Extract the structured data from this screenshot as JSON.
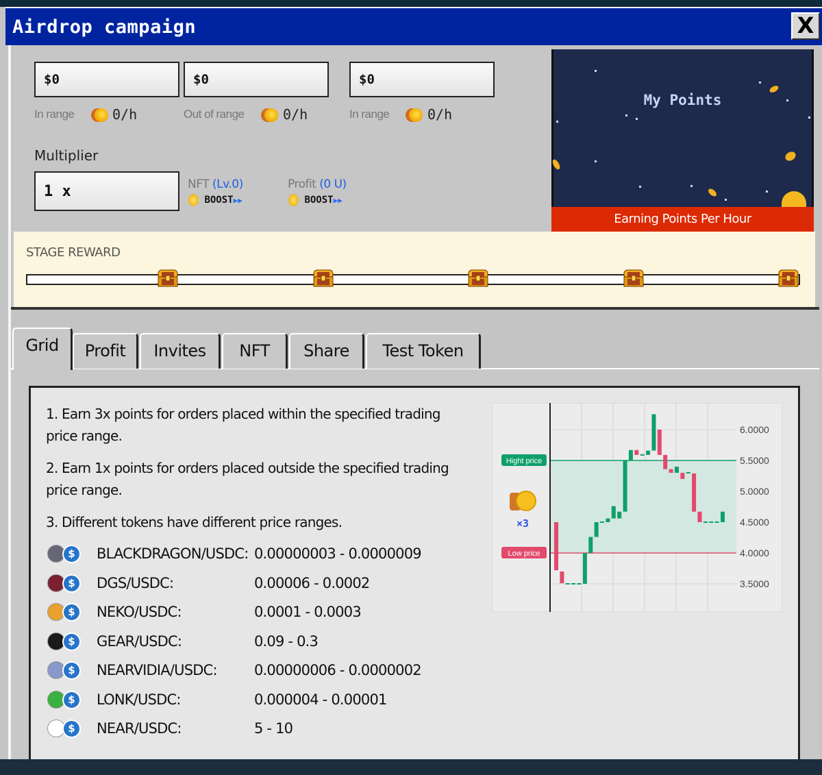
{
  "window": {
    "title": "Airdrop campaign",
    "close_label": "X"
  },
  "boost_inputs": [
    {
      "value": "$0",
      "label": "In range",
      "rate": "0/h"
    },
    {
      "value": "$0",
      "label": "Out of range",
      "rate": "0/h"
    },
    {
      "value": "$0",
      "label": "In range",
      "rate": "0/h"
    }
  ],
  "multiplier": {
    "label": "Multiplier",
    "value": "1 x",
    "nft": {
      "label": "NFT",
      "level": "(Lv.0)",
      "boost": "BOOST"
    },
    "profit": {
      "label": "Profit",
      "amount": "(0 U)",
      "boost": "BOOST"
    }
  },
  "points": {
    "title": "My Points",
    "subtitle": "Earning Points Per Hour"
  },
  "stage": {
    "title": "STAGE REWARD",
    "chests": 5
  },
  "tabs": [
    {
      "label": "Grid",
      "active": true
    },
    {
      "label": "Profit"
    },
    {
      "label": "Invites"
    },
    {
      "label": "NFT"
    },
    {
      "label": "Share"
    },
    {
      "label": "Test Token"
    }
  ],
  "rules": [
    "1. Earn 3x points for orders placed within the specified trading price range.",
    "2. Earn 1x points for orders placed outside the specified trading price range.",
    "3. Different tokens have different price ranges."
  ],
  "tokens": [
    {
      "pair": "BLACKDRAGON/USDC:",
      "range": "0.00000003 - 0.0000009",
      "color": "#667"
    },
    {
      "pair": "DGS/USDC:",
      "range": "0.00006 - 0.0002",
      "color": "#7a2030"
    },
    {
      "pair": "NEKO/USDC:",
      "range": "0.0001 - 0.0003",
      "color": "#e8a030"
    },
    {
      "pair": "GEAR/USDC:",
      "range": "0.09 - 0.3",
      "color": "#1a1a1a"
    },
    {
      "pair": "NEARVIDIA/USDC:",
      "range": "0.00000006 - 0.0000002",
      "color": "#8898c8"
    },
    {
      "pair": "LONK/USDC:",
      "range": "0.000004 - 0.00001",
      "color": "#3ab040"
    },
    {
      "pair": "NEAR/USDC:",
      "range": "5 - 10",
      "color": "#ffffff"
    }
  ],
  "illustration": {
    "high_label": "Hight price",
    "low_label": "Low price",
    "multiplier": "×3",
    "high": 5.5,
    "low": 4.0,
    "y_ticks": [
      "6.0000",
      "5.5000",
      "5.0000",
      "4.5000",
      "4.0000",
      "3.5000"
    ],
    "ylim": [
      3.07,
      6.47
    ],
    "colors": {
      "up": "#0fa06a",
      "down": "#e24a6c",
      "band": "#d3e8e0"
    },
    "candles": [
      [
        4.5,
        3.72
      ],
      [
        3.7,
        3.51
      ],
      [
        3.5,
        3.5
      ],
      [
        3.5,
        3.5
      ],
      [
        3.5,
        3.5
      ],
      [
        3.5,
        4.0
      ],
      [
        4.0,
        4.26
      ],
      [
        4.26,
        4.5
      ],
      [
        4.5,
        4.5
      ],
      [
        4.5,
        4.56
      ],
      [
        4.56,
        4.76
      ],
      [
        4.56,
        4.67
      ],
      [
        4.67,
        5.5
      ],
      [
        5.5,
        5.67
      ],
      [
        5.67,
        5.59
      ],
      [
        5.59,
        5.59
      ],
      [
        5.59,
        5.66
      ],
      [
        5.66,
        6.25
      ],
      [
        6.0,
        5.59
      ],
      [
        5.59,
        5.36
      ],
      [
        5.36,
        5.3
      ],
      [
        5.3,
        5.4
      ],
      [
        5.3,
        5.2
      ],
      [
        5.3,
        5.3
      ],
      [
        5.29,
        4.67
      ],
      [
        4.67,
        4.5
      ],
      [
        4.5,
        4.5
      ],
      [
        4.5,
        4.5
      ],
      [
        4.5,
        4.5
      ],
      [
        4.5,
        4.67
      ]
    ]
  }
}
